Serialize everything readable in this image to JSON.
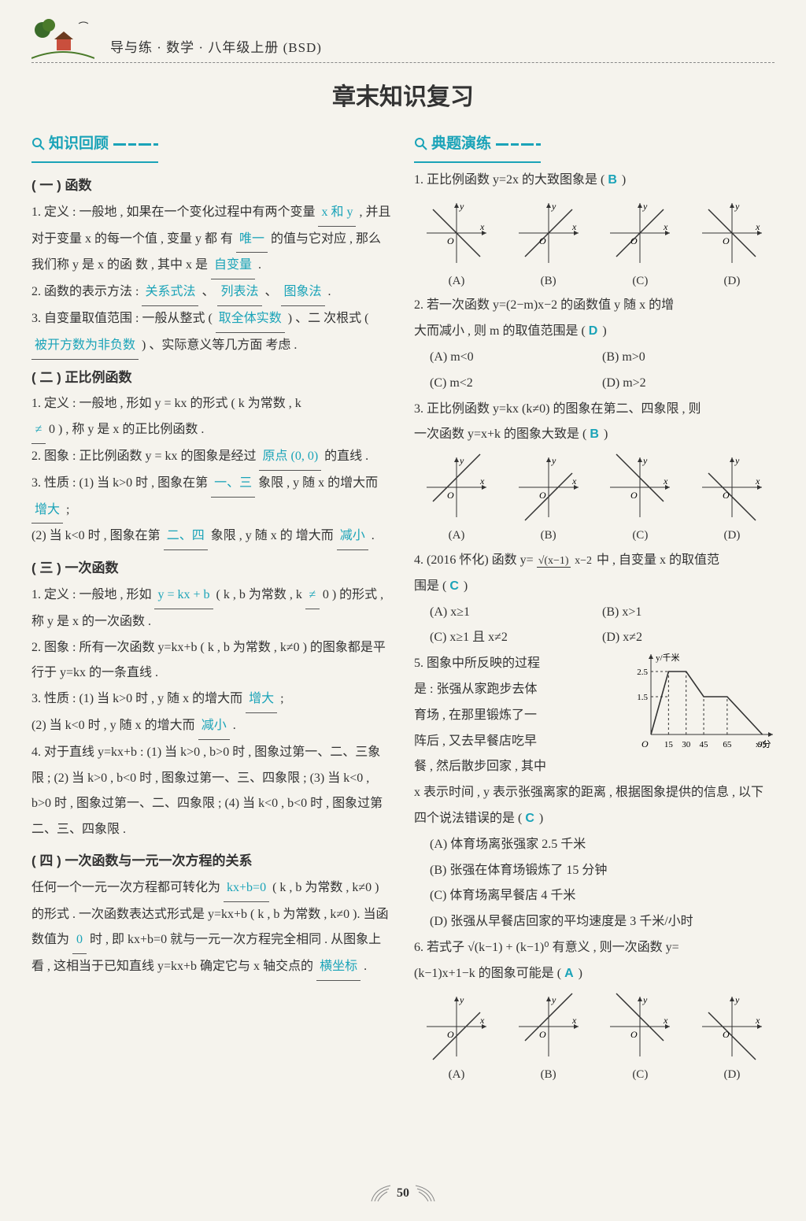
{
  "colors": {
    "accent": "#1aa3b8",
    "text": "#333333",
    "background": "#f5f3ed",
    "underline": "#555555"
  },
  "typography": {
    "body_fontsize_pt": 12,
    "title_fontsize_pt": 22,
    "section_fontsize_pt": 14
  },
  "header": {
    "book_ref": "导与练 · 数学 · 八年级上册 (BSD)"
  },
  "chapter_title": "章末知识复习",
  "left": {
    "badge": "知识回顾",
    "s1": {
      "head": "( 一 ) 函数",
      "p1a": "1. 定义 : 一般地 , 如果在一个变化过程中有两个变量",
      "blank1": "x 和 y",
      "p1b": ", 并且对于变量 x 的每一个值 , 变量 y 都",
      "p1c": "有",
      "blank2": "唯一",
      "p1d": "的值与它对应 , 那么我们称 y 是 x 的函",
      "p1e": "数 , 其中 x 是",
      "blank3": "自变量",
      "p1f": ".",
      "p2a": "2. 函数的表示方法 :",
      "blank4": "关系式法",
      "p2sep1": "、",
      "blank5": "列表法",
      "p2sep2": "、",
      "blank6": "图象法",
      "p2end": ".",
      "p3a": "3. 自变量取值范围 : 一般从整式 (",
      "blank7": "取全体实数",
      "p3b": ") 、二",
      "p3c": "次根式 (",
      "blank8": "被开方数为非负数",
      "p3d": ") 、实际意义等几方面",
      "p3e": "考虑 ."
    },
    "s2": {
      "head": "( 二 ) 正比例函数",
      "p1a": "1. 定义 : 一般地 , 形如 y = kx 的形式 ( k 为常数 , k",
      "blank1": "≠",
      "p1b": "0 ) , 称 y 是 x 的正比例函数 .",
      "p2a": "2. 图象 : 正比例函数 y = kx 的图象是经过",
      "blank2": "原点 (0, 0)",
      "p2b": "的直线 .",
      "p3a": "3. 性质 : (1) 当 k>0 时 , 图象在第",
      "blank3": "一、三",
      "p3b": "象限 , y 随",
      "p3c": "x 的增大而",
      "blank4": "增大",
      "p3d": ";",
      "p4a": "(2) 当 k<0 时 , 图象在第",
      "blank5": "二、四",
      "p4b": "象限 , y 随 x 的",
      "p4c": "增大而",
      "blank6": "减小",
      "p4d": "."
    },
    "s3": {
      "head": "( 三 ) 一次函数",
      "p1a": "1. 定义 : 一般地 , 形如",
      "blank1": "y = kx + b",
      "p1b": "( k , b 为常数 , k",
      "blank2": "≠",
      "p1c": "0 ) 的形式 , 称 y 是 x 的一次函数 .",
      "p2": "2. 图象 : 所有一次函数 y=kx+b ( k , b 为常数 , k≠0 ) 的图象都是平行于 y=kx 的一条直线 .",
      "p3a": "3. 性质 : (1) 当 k>0 时 , y 随 x 的增大而",
      "blank3": "增大",
      "p3b": ";",
      "p3c": "(2) 当 k<0 时 , y 随 x 的增大而",
      "blank4": "减小",
      "p3d": ".",
      "p4": "4. 对于直线 y=kx+b : (1) 当 k>0 , b>0 时 , 图象过第一、二、三象限 ; (2) 当 k>0 , b<0 时 , 图象过第一、三、四象限 ; (3) 当 k<0 , b>0 时 , 图象过第一、二、四象限 ; (4) 当 k<0 , b<0 时 , 图象过第二、三、四象限 ."
    },
    "s4": {
      "head": "( 四 ) 一次函数与一元一次方程的关系",
      "p1a": "任何一个一元一次方程都可转化为",
      "blank1": "kx+b=0",
      "p1b": "( k , b 为常数 , k≠0 ) 的形式 . 一次函数表达式形式是 y=kx+b ( k , b 为常数 , k≠0 ). 当函数值为",
      "blank2": "0",
      "p1c": "时 , 即 kx+b=0 就与一元一次方程完全相同 . 从图象上看 , 这相当于已知直线 y=kx+b 确定它与 x 轴交点的",
      "blank3": "横坐标",
      "p1d": "."
    }
  },
  "right": {
    "badge": "典题演练",
    "q1": {
      "stem": "1. 正比例函数 y=2x 的大致图象是 (",
      "ans": "B",
      "close": ")",
      "labels": [
        "(A)",
        "(B)",
        "(C)",
        "(D)"
      ],
      "charts": {
        "type": "mini-axes-line",
        "stroke": "#333333",
        "axis_stroke": "#333333",
        "size": 88,
        "lines": [
          {
            "slope": -1,
            "through_y": 0
          },
          {
            "slope": 1,
            "through_y": 0
          },
          {
            "slope": 1,
            "through_y": 0
          },
          {
            "slope": -1,
            "through_y": 0
          }
        ],
        "y_label": "y",
        "x_label": "x",
        "origin_label": "O"
      }
    },
    "q2": {
      "stem1": "2. 若一次函数 y=(2−m)x−2 的函数值 y 随 x 的增",
      "stem2": "大而减小 , 则 m 的取值范围是 (",
      "ans": "D",
      "close": ")",
      "opts": [
        "(A) m<0",
        "(B) m>0",
        "(C) m<2",
        "(D) m>2"
      ]
    },
    "q3": {
      "stem1": "3. 正比例函数 y=kx (k≠0) 的图象在第二、四象限 , 则",
      "stem2": "一次函数 y=x+k 的图象大致是 (",
      "ans": "B",
      "close": ")",
      "labels": [
        "(A)",
        "(B)",
        "(C)",
        "(D)"
      ],
      "charts": {
        "type": "mini-axes-line",
        "stroke": "#333333",
        "size": 88,
        "lines": [
          {
            "slope": 1,
            "through_y": 12
          },
          {
            "slope": 1,
            "through_y": -12
          },
          {
            "slope": -1,
            "through_y": 12
          },
          {
            "slope": -1,
            "through_y": -12
          }
        ],
        "y_label": "y",
        "x_label": "x",
        "origin_label": "O"
      }
    },
    "q4": {
      "stem_pre": "4. (2016 怀化) 函数 y=",
      "frac_top": "√(x−1)",
      "frac_bot": "x−2",
      "stem_post": "中 , 自变量 x 的取值范",
      "stem2": "围是 (",
      "ans": "C",
      "close": ")",
      "opts": [
        "(A) x≥1",
        "(B) x>1",
        "(C) x≥1 且 x≠2",
        "(D) x≠2"
      ]
    },
    "q5": {
      "stem_lines": [
        "5. 图象中所反映的过程",
        "是 : 张强从家跑步去体",
        "育场 , 在那里锻炼了一",
        "阵后 , 又去早餐店吃早",
        "餐 , 然后散步回家 , 其中"
      ],
      "stem_tail": "x 表示时间 , y 表示张强离家的距离 , 根据图象提供的信息 , 以下四个说法错误的是 (",
      "ans": "C",
      "close": ")",
      "opts": [
        "(A) 体育场离张强家 2.5 千米",
        "(B) 张强在体育场锻炼了 15 分钟",
        "(C) 体育场离早餐店 4 千米",
        "(D) 张强从早餐店回家的平均速度是 3 千米/小时"
      ],
      "chart": {
        "type": "piecewise-line",
        "x_label": "x/分",
        "y_label": "y/千米",
        "x_ticks": [
          15,
          30,
          45,
          65,
          95
        ],
        "y_ticks": [
          1.5,
          2.5
        ],
        "xlim": [
          0,
          100
        ],
        "ylim": [
          0,
          3
        ],
        "points": [
          [
            0,
            0
          ],
          [
            15,
            2.5
          ],
          [
            30,
            2.5
          ],
          [
            45,
            1.5
          ],
          [
            65,
            1.5
          ],
          [
            95,
            0
          ]
        ],
        "stroke": "#333333",
        "dash_color": "#333333",
        "background": "#f5f3ed",
        "width": 185,
        "height": 128,
        "origin_label": "O"
      }
    },
    "q6": {
      "stem1": "6. 若式子 √(k−1) + (k−1)⁰ 有意义 , 则一次函数 y=",
      "stem2": "(k−1)x+1−k 的图象可能是 (",
      "ans": "A",
      "close": ")",
      "labels": [
        "(A)",
        "(B)",
        "(C)",
        "(D)"
      ],
      "charts": {
        "type": "mini-axes-line",
        "stroke": "#333333",
        "size": 88,
        "lines": [
          {
            "slope": 1,
            "through_y": -12
          },
          {
            "slope": 1,
            "through_y": 12
          },
          {
            "slope": -1,
            "through_y": 12
          },
          {
            "slope": -1,
            "through_y": -12
          }
        ],
        "y_label": "y",
        "x_label": "x",
        "origin_label": "O"
      }
    }
  },
  "page_number": "50"
}
